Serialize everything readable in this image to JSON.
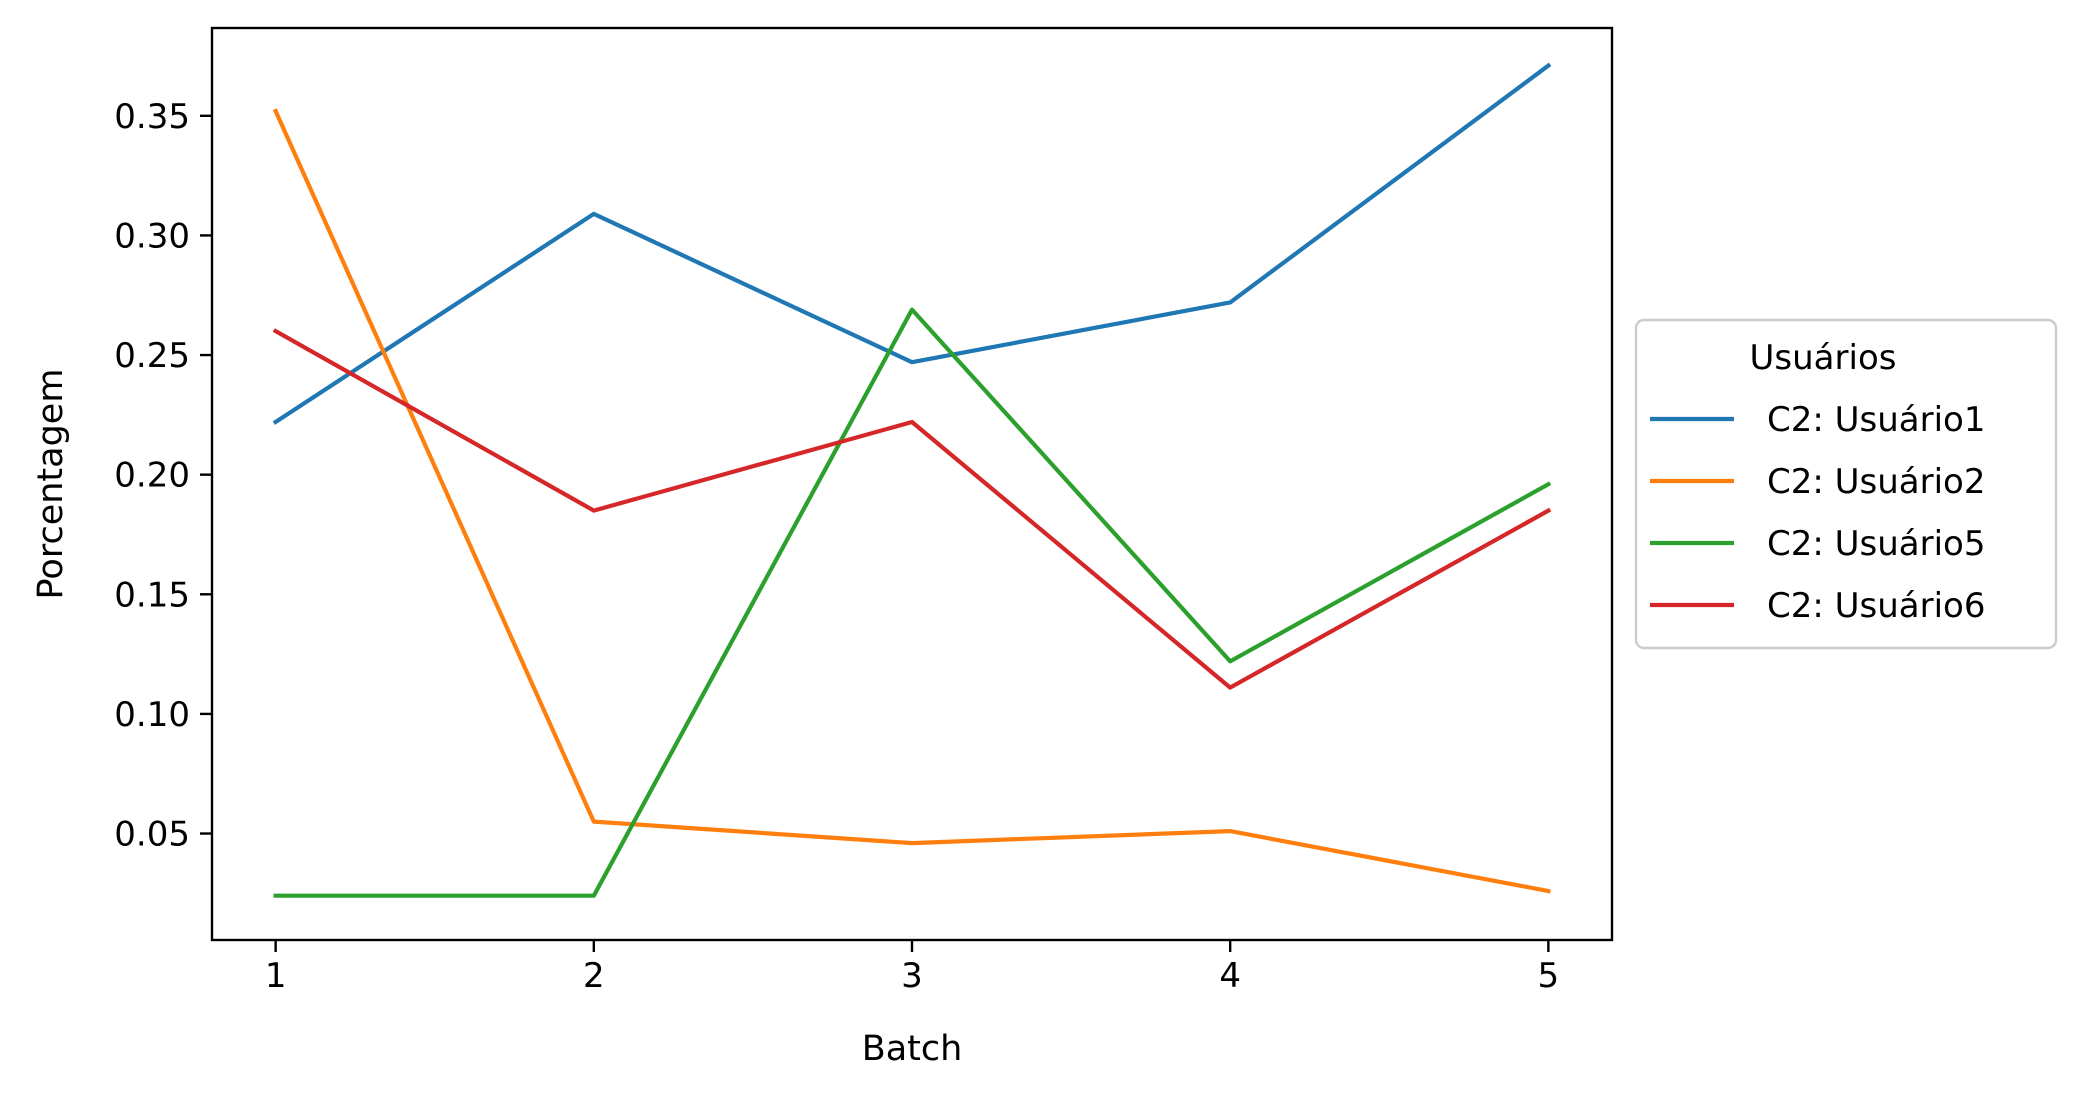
{
  "chart_data": {
    "type": "line",
    "title": "",
    "xlabel": "Batch",
    "ylabel": "Porcentagem",
    "x": [
      1,
      2,
      3,
      4,
      5
    ],
    "x_tick_labels": [
      "1",
      "2",
      "3",
      "4",
      "5"
    ],
    "y_ticks": [
      0.05,
      0.1,
      0.15,
      0.2,
      0.25,
      0.3,
      0.35
    ],
    "y_tick_labels": [
      "0.05",
      "0.10",
      "0.15",
      "0.20",
      "0.25",
      "0.30",
      "0.35"
    ],
    "xlim": [
      0.8,
      5.2
    ],
    "ylim": [
      0.0055,
      0.3867
    ],
    "grid": false,
    "legend": {
      "title": "Usuários",
      "placement": "center-right outside"
    },
    "series": [
      {
        "name": "C2: Usuário1",
        "color": "#1f77b4",
        "values": [
          0.222,
          0.309,
          0.247,
          0.272,
          0.371
        ]
      },
      {
        "name": "C2: Usuário2",
        "color": "#ff7f0e",
        "values": [
          0.352,
          0.055,
          0.046,
          0.051,
          0.026
        ]
      },
      {
        "name": "C2: Usuário5",
        "color": "#2ca02c",
        "values": [
          0.024,
          0.024,
          0.269,
          0.122,
          0.196
        ]
      },
      {
        "name": "C2: Usuário6",
        "color": "#d62728",
        "values": [
          0.26,
          0.185,
          0.222,
          0.111,
          0.185
        ]
      }
    ]
  }
}
